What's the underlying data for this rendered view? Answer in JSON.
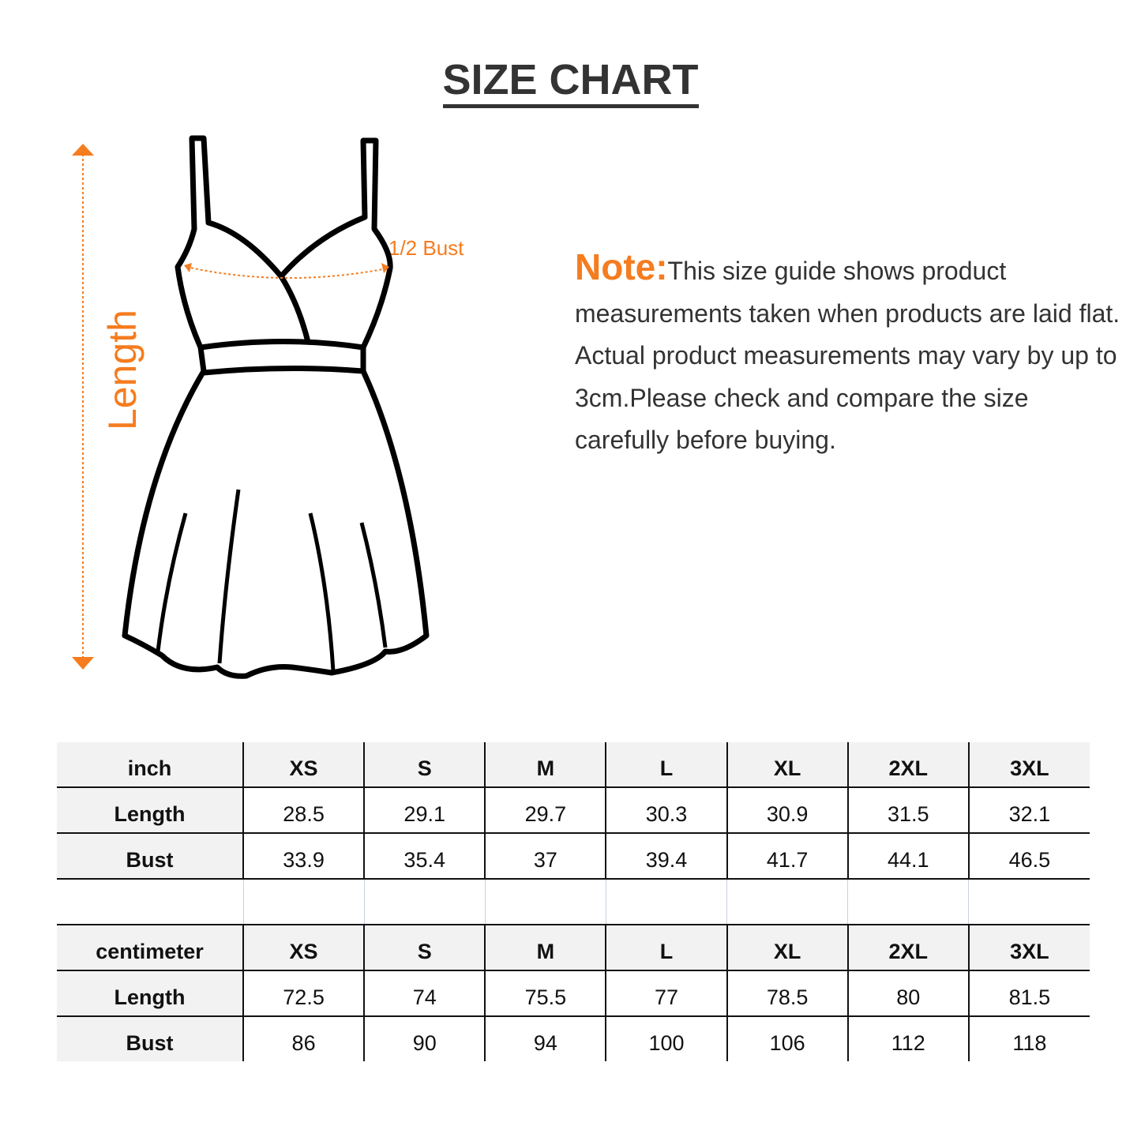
{
  "title": "SIZE CHART",
  "diagram": {
    "length_label": "Length",
    "bust_label": "1/2 Bust",
    "accent": "#f57c1f"
  },
  "note": {
    "label": "Note:",
    "text": "This size guide shows product measurements taken when products are laid flat. Actual product measurements may vary by up to 3cm.Please check and compare the size carefully before buying."
  },
  "sizes": [
    "XS",
    "S",
    "M",
    "L",
    "XL",
    "2XL",
    "3XL"
  ],
  "inch": {
    "unit": "inch",
    "rows": [
      {
        "label": "Length",
        "values": [
          "28.5",
          "29.1",
          "29.7",
          "30.3",
          "30.9",
          "31.5",
          "32.1"
        ]
      },
      {
        "label": "Bust",
        "values": [
          "33.9",
          "35.4",
          "37",
          "39.4",
          "41.7",
          "44.1",
          "46.5"
        ]
      }
    ]
  },
  "cm": {
    "unit": "centimeter",
    "rows": [
      {
        "label": "Length",
        "values": [
          "72.5",
          "74",
          "75.5",
          "77",
          "78.5",
          "80",
          "81.5"
        ]
      },
      {
        "label": "Bust",
        "values": [
          "86",
          "90",
          "94",
          "100",
          "106",
          "112",
          "118"
        ]
      }
    ]
  }
}
